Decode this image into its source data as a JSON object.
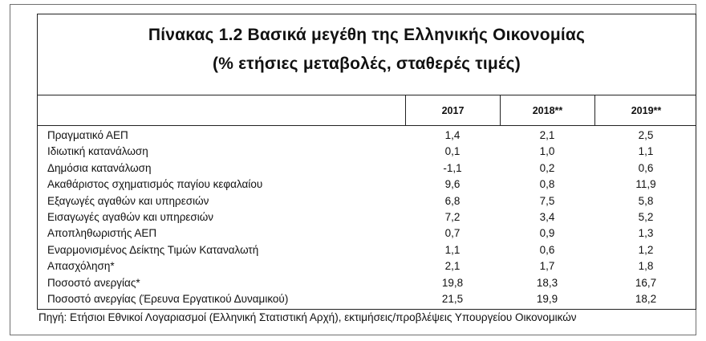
{
  "title": {
    "line1": "Πίνακας 1.2 Βασικά μεγέθη της Ελληνικής Οικονομίας",
    "line2": "(% ετήσιες μεταβολές, σταθερές τιμές)"
  },
  "columns": [
    "",
    "2017",
    "2018**",
    "2019**"
  ],
  "rows": [
    {
      "label": "Πραγματικό ΑΕΠ",
      "y2017": "1,4",
      "y2018": "2,1",
      "y2019": "2,5"
    },
    {
      "label": "Ιδιωτική κατανάλωση",
      "y2017": "0,1",
      "y2018": "1,0",
      "y2019": "1,1"
    },
    {
      "label": "Δημόσια κατανάλωση",
      "y2017": "-1,1",
      "y2018": "0,2",
      "y2019": "0,6"
    },
    {
      "label": "Ακαθάριστος σχηματισμός παγίου κεφαλαίου",
      "y2017": "9,6",
      "y2018": "0,8",
      "y2019": "11,9"
    },
    {
      "label": "Εξαγωγές αγαθών και υπηρεσιών",
      "y2017": "6,8",
      "y2018": "7,5",
      "y2019": "5,8"
    },
    {
      "label": "Εισαγωγές αγαθών και υπηρεσιών",
      "y2017": "7,2",
      "y2018": "3,4",
      "y2019": "5,2"
    },
    {
      "label": "Αποπληθωριστής ΑΕΠ",
      "y2017": "0,7",
      "y2018": "0,9",
      "y2019": "1,3"
    },
    {
      "label": "Εναρμονισμένος Δείκτης Τιμών Καταναλωτή",
      "y2017": "1,1",
      "y2018": "0,6",
      "y2019": "1,2"
    },
    {
      "label": "Απασχόληση*",
      "y2017": "2,1",
      "y2018": "1,7",
      "y2019": "1,8"
    },
    {
      "label": "Ποσοστό ανεργίας*",
      "y2017": "19,8",
      "y2018": "18,3",
      "y2019": "16,7"
    },
    {
      "label": "Ποσοστό ανεργίας (Έρευνα Εργατικού Δυναμικού)",
      "y2017": "21,5",
      "y2018": "19,9",
      "y2019": "18,2"
    }
  ],
  "source_note": "Πηγή: Ετήσιοι Εθνικοί Λογαριασμοί (Ελληνική Στατιστική Αρχή), εκτιμήσεις/προβλέψεις Υπουργείου Οικονομικών"
}
